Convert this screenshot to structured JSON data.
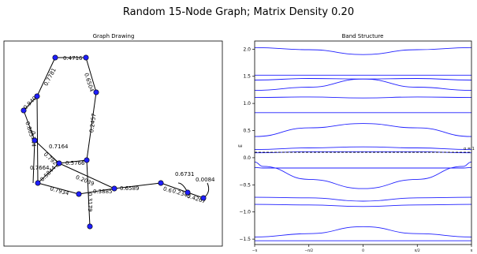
{
  "suptitle": "Random 15-Node Graph; Matrix Density 0.20",
  "graph_panel": {
    "title": "Graph Drawing",
    "node_color": "#1f1fff",
    "edge_color": "#000000"
  },
  "chart_data": {
    "type": "line",
    "title": "Band Structure",
    "xlabel": "",
    "ylabel": "E",
    "xlim": [
      -3.14159,
      3.14159
    ],
    "ylim": [
      -1.6,
      2.15
    ],
    "x_ticks": [
      {
        "value": -3.14159,
        "label": "−π"
      },
      {
        "value": -1.5708,
        "label": "−π/2"
      },
      {
        "value": 0,
        "label": "0"
      },
      {
        "value": 1.5708,
        "label": "π/2"
      },
      {
        "value": 3.14159,
        "label": "π"
      }
    ],
    "y_ticks": [
      -1.5,
      -1.0,
      -0.5,
      0.0,
      0.5,
      1.0,
      1.5,
      2.0
    ],
    "y_tick_labels": [
      "−1.5",
      "−1.0",
      "−0.5",
      "0.0",
      "0.5",
      "1.0",
      "1.5",
      "2.0"
    ],
    "line_color": "#1f1fff",
    "fermi_level": {
      "value": 0.1,
      "label": "α = 1",
      "style": "dashed",
      "color": "#000000"
    },
    "series": [
      {
        "x": [
          -3.14159,
          -1.5708,
          0,
          1.5708,
          3.14159
        ],
        "values": [
          2.03,
          1.99,
          1.9,
          1.99,
          2.03
        ]
      },
      {
        "x": [
          -3.14159,
          -1.5708,
          0,
          1.5708,
          3.14159
        ],
        "values": [
          1.52,
          1.52,
          1.52,
          1.52,
          1.52
        ]
      },
      {
        "x": [
          -3.14159,
          -1.5708,
          0,
          1.5708,
          3.14159
        ],
        "values": [
          1.43,
          1.46,
          1.45,
          1.3,
          1.24
        ]
      },
      {
        "x": [
          -3.14159,
          -1.5708,
          0,
          1.5708,
          3.14159
        ],
        "values": [
          1.24,
          1.3,
          1.45,
          1.46,
          1.43
        ]
      },
      {
        "x": [
          -3.14159,
          -1.5708,
          0,
          1.5708,
          3.14159
        ],
        "values": [
          1.11,
          1.12,
          1.1,
          1.12,
          1.11
        ]
      },
      {
        "x": [
          -3.14159,
          -1.5708,
          0,
          1.5708,
          3.14159
        ],
        "values": [
          0.83,
          0.83,
          0.83,
          0.83,
          0.83
        ]
      },
      {
        "x": [
          -3.14159,
          -1.5708,
          0,
          1.5708,
          3.14159
        ],
        "values": [
          0.39,
          0.55,
          0.63,
          0.55,
          0.39
        ]
      },
      {
        "x": [
          -3.14159,
          -1.5708,
          0,
          1.5708,
          3.14159
        ],
        "values": [
          0.15,
          0.18,
          0.2,
          0.18,
          0.15
        ]
      },
      {
        "x": [
          -3.14159,
          -1.5708,
          0,
          1.5708,
          3.14159
        ],
        "values": [
          0.09,
          0.11,
          0.11,
          0.11,
          0.09
        ]
      },
      {
        "x": [
          -3.14159,
          -2.9,
          -1.5708,
          0,
          1.5708,
          2.9,
          3.14159
        ],
        "values": [
          -0.08,
          -0.16,
          -0.4,
          -0.57,
          -0.4,
          -0.16,
          -0.08
        ]
      },
      {
        "x": [
          -3.14159,
          -2.9,
          -1.5708,
          0,
          1.5708,
          2.9,
          3.14159
        ],
        "values": [
          -0.18,
          -0.19,
          -0.19,
          -0.19,
          -0.19,
          -0.19,
          -0.18
        ]
      },
      {
        "x": [
          -3.14159,
          -1.5708,
          0,
          1.5708,
          3.14159
        ],
        "values": [
          -0.73,
          -0.74,
          -0.8,
          -0.74,
          -0.73
        ]
      },
      {
        "x": [
          -3.14159,
          -1.5708,
          0,
          1.5708,
          3.14159
        ],
        "values": [
          -0.86,
          -0.87,
          -0.9,
          -0.87,
          -0.86
        ]
      },
      {
        "x": [
          -3.14159,
          -1.5708,
          0,
          1.5708,
          3.14159
        ],
        "values": [
          -1.46,
          -1.4,
          -1.27,
          -1.4,
          -1.46
        ]
      },
      {
        "x": [
          -3.14159,
          -1.5708,
          0,
          1.5708,
          3.14159
        ],
        "values": [
          -1.53,
          -1.53,
          -1.53,
          -1.53,
          -1.53
        ]
      }
    ]
  }
}
